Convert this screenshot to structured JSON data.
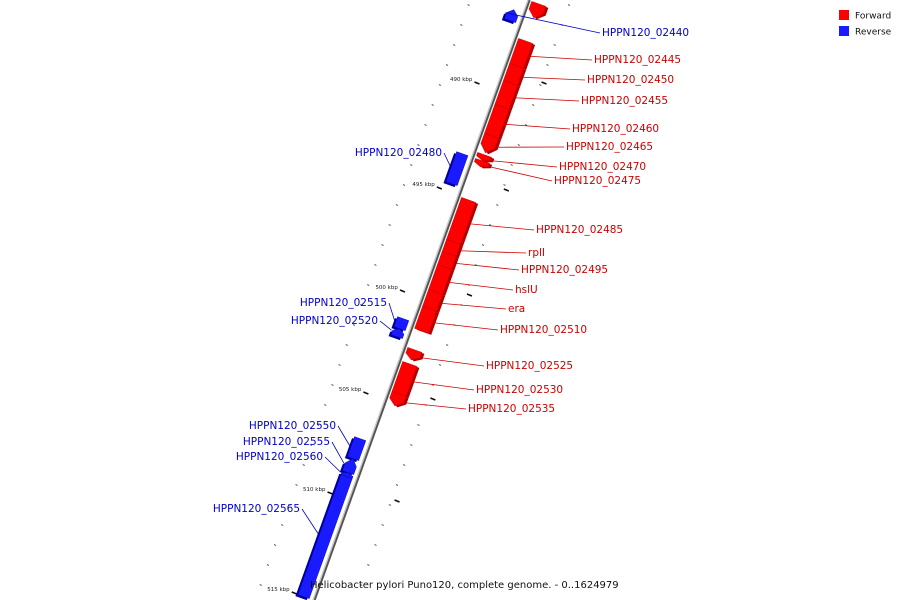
{
  "legend": {
    "items": [
      {
        "label": "Forward",
        "color": "#ff0000"
      },
      {
        "label": "Reverse",
        "color": "#0000ff"
      }
    ]
  },
  "colors": {
    "forward": "#ff0000",
    "forward_dark": "#b30000",
    "reverse": "#1a1aff",
    "reverse_dark": "#00009a",
    "forward_text": "#cc0000",
    "reverse_text": "#0000cc",
    "backbone": "#888888"
  },
  "caption": "Helicobacter pylori Puno120, complete genome. - 0..1624979",
  "ticks": [
    {
      "label": "490 kbp"
    },
    {
      "label": "495 kbp"
    },
    {
      "label": "500 kbp"
    },
    {
      "label": "505 kbp"
    },
    {
      "label": "510 kbp"
    },
    {
      "label": "515 kbp"
    }
  ],
  "genes": [
    {
      "name": "",
      "strand": "forward"
    },
    {
      "name": "HPPN120_02440",
      "strand": "reverse"
    },
    {
      "name": "HPPN120_02445",
      "strand": "forward"
    },
    {
      "name": "HPPN120_02450",
      "strand": "forward"
    },
    {
      "name": "HPPN120_02455",
      "strand": "forward"
    },
    {
      "name": "HPPN120_02460",
      "strand": "forward"
    },
    {
      "name": "HPPN120_02465",
      "strand": "forward"
    },
    {
      "name": "HPPN120_02470",
      "strand": "forward"
    },
    {
      "name": "HPPN120_02475",
      "strand": "forward"
    },
    {
      "name": "HPPN120_02480",
      "strand": "reverse"
    },
    {
      "name": "HPPN120_02485",
      "strand": "forward"
    },
    {
      "name": "rplI",
      "strand": "forward"
    },
    {
      "name": "HPPN120_02495",
      "strand": "forward"
    },
    {
      "name": "hslU",
      "strand": "forward"
    },
    {
      "name": "era",
      "strand": "forward"
    },
    {
      "name": "HPPN120_02510",
      "strand": "forward"
    },
    {
      "name": "HPPN120_02515",
      "strand": "reverse"
    },
    {
      "name": "HPPN120_02520",
      "strand": "reverse"
    },
    {
      "name": "HPPN120_02525",
      "strand": "forward"
    },
    {
      "name": "HPPN120_02530",
      "strand": "forward"
    },
    {
      "name": "HPPN120_02535",
      "strand": "forward"
    },
    {
      "name": "HPPN120_02550",
      "strand": "reverse"
    },
    {
      "name": "HPPN120_02555",
      "strand": "reverse"
    },
    {
      "name": "HPPN120_02560",
      "strand": "reverse"
    },
    {
      "name": "HPPN120_02565",
      "strand": "reverse"
    }
  ]
}
